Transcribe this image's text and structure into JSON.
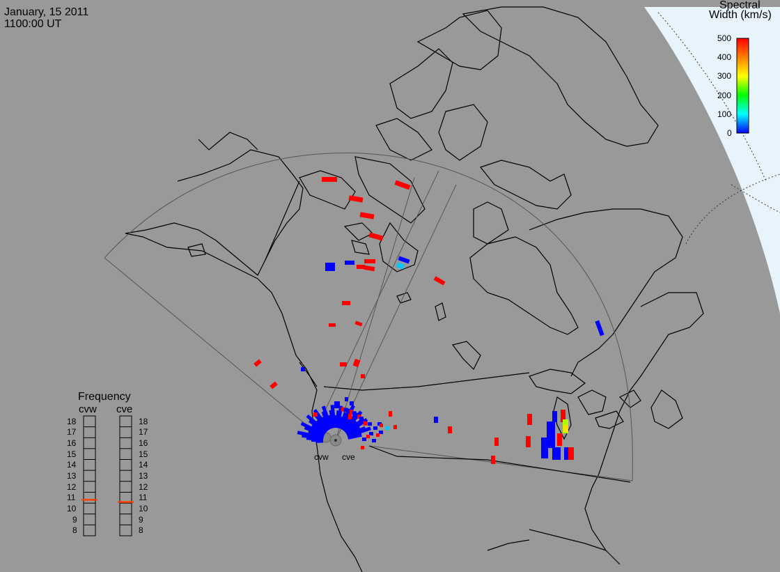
{
  "header": {
    "date": "January, 15 2011",
    "time": "1100:00 UT"
  },
  "colorbar": {
    "title_line1": "Spectral",
    "title_line2": "Width (km/s)",
    "ticks": [
      "500",
      "400",
      "300",
      "200",
      "100",
      "0"
    ],
    "range": [
      0,
      500
    ],
    "colors": [
      "#0000ff",
      "#00ffff",
      "#00ff00",
      "#ffff00",
      "#ff8000",
      "#ff0000"
    ]
  },
  "radars": {
    "west": "cvw",
    "east": "cve"
  },
  "frequency": {
    "title": "Frequency",
    "left_label": "cvw",
    "right_label": "cve",
    "ticks": [
      "18",
      "17",
      "16",
      "15",
      "14",
      "13",
      "12",
      "11",
      "10",
      "9",
      "8"
    ],
    "range_mhz": [
      8,
      18
    ],
    "cvw_mhz": 10.8,
    "cve_mhz": 10.6,
    "marker_color": "#ff4000"
  },
  "colors": {
    "background": "#999999",
    "night_side": "#e8f4fc",
    "coastline": "#000000",
    "fov": "#555555",
    "red": "#ff0000",
    "blue": "#0000ff"
  }
}
